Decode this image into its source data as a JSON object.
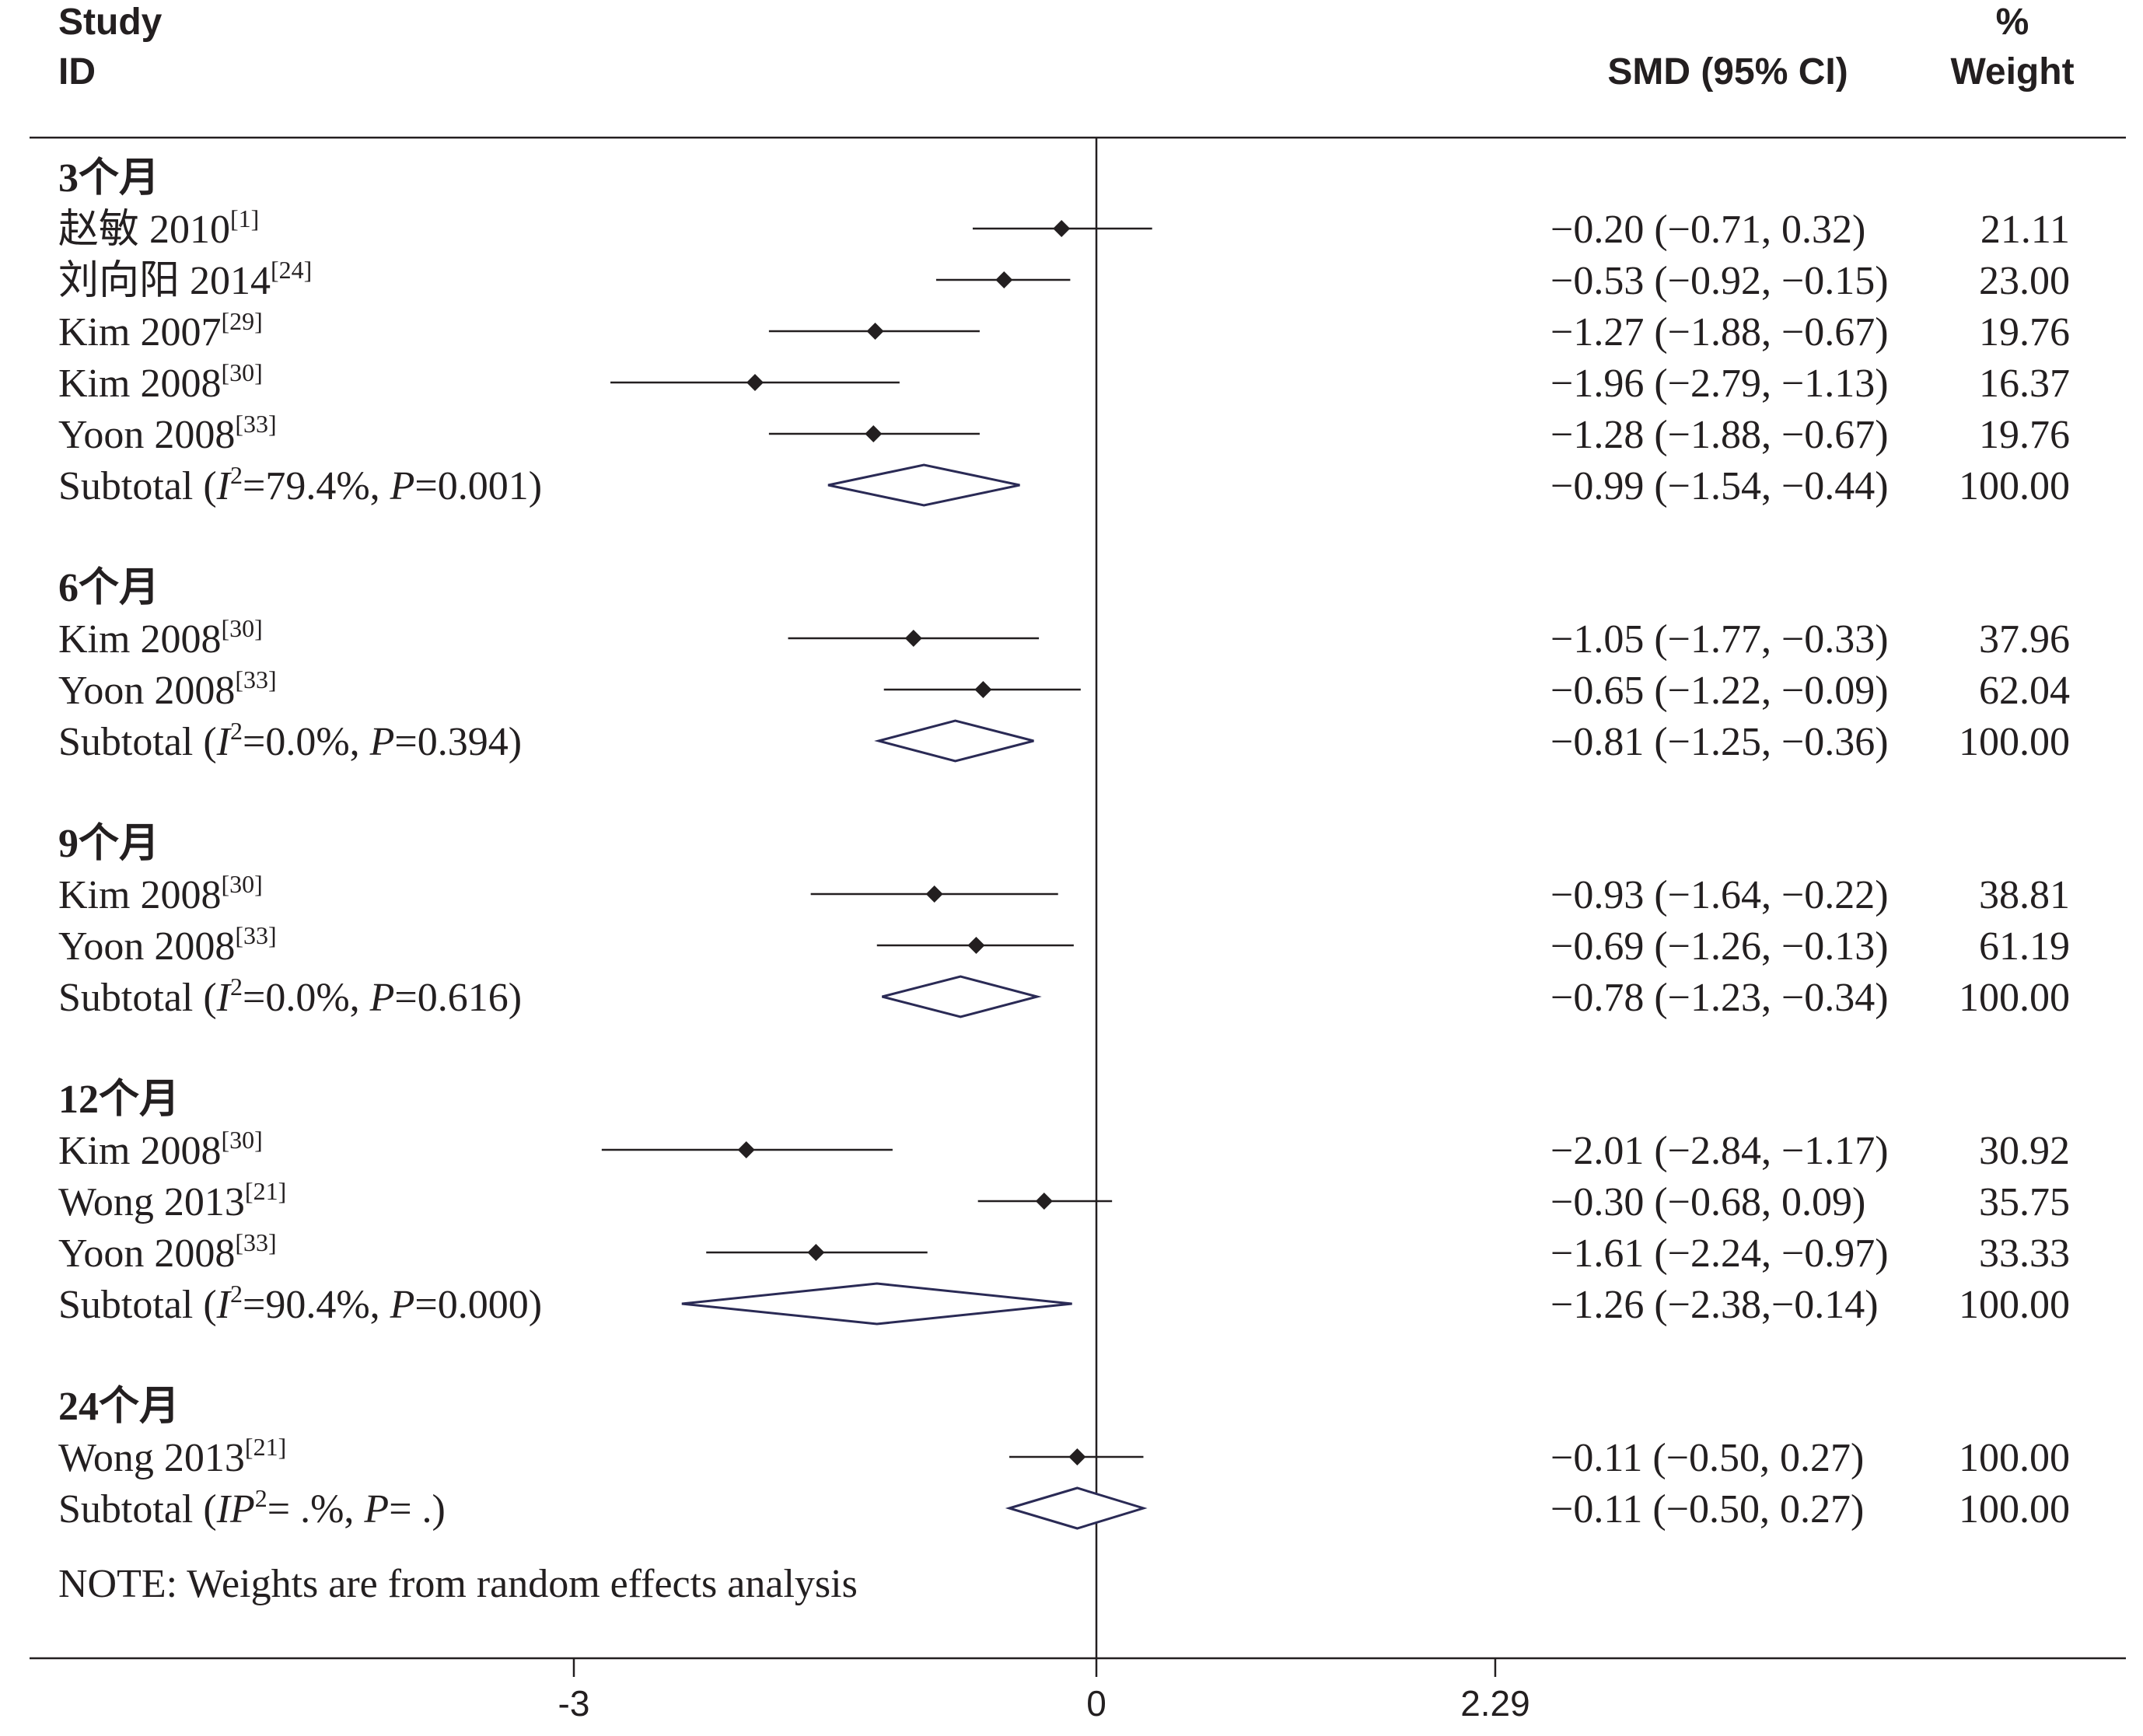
{
  "chart_data": {
    "type": "forest",
    "header": {
      "study_line1": "Study",
      "study_line2": "ID",
      "effect": "SMD (95% CI)",
      "weight_line1": "%",
      "weight_line2": "Weight"
    },
    "x_ticks": [
      {
        "value": -3,
        "label": "-3"
      },
      {
        "value": 0,
        "label": "0"
      },
      {
        "value": 2.29,
        "label": "2.29"
      }
    ],
    "groups": [
      {
        "label": "3个月",
        "studies": [
          {
            "name": "赵敏 2010",
            "ref": "[1]",
            "smd": -0.2,
            "lo": -0.71,
            "hi": 0.32,
            "ci_text": "−0.20 (−0.71, 0.32)",
            "weight": "21.11"
          },
          {
            "name": "刘向阳 2014",
            "ref": "[24]",
            "smd": -0.53,
            "lo": -0.92,
            "hi": -0.15,
            "ci_text": "−0.53 (−0.92, −0.15)",
            "weight": "23.00"
          },
          {
            "name": "Kim 2007",
            "ref": "[29]",
            "smd": -1.27,
            "lo": -1.88,
            "hi": -0.67,
            "ci_text": "−1.27 (−1.88, −0.67)",
            "weight": "19.76"
          },
          {
            "name": "Kim 2008",
            "ref": "[30]",
            "smd": -1.96,
            "lo": -2.79,
            "hi": -1.13,
            "ci_text": "−1.96 (−2.79, −1.13)",
            "weight": "16.37"
          },
          {
            "name": "Yoon 2008",
            "ref": "[33]",
            "smd": -1.28,
            "lo": -1.88,
            "hi": -0.67,
            "ci_text": "−1.28 (−1.88, −0.67)",
            "weight": "19.76"
          }
        ],
        "subtotal": {
          "prefix": "Subtotal (",
          "i": "I",
          "sup": "2",
          "mid": "=79.4%, ",
          "p": "P",
          "end": "=0.001)",
          "smd": -0.99,
          "lo": -1.54,
          "hi": -0.44,
          "ci_text": "−0.99 (−1.54, −0.44)",
          "weight": "100.00"
        }
      },
      {
        "label": "6个月",
        "studies": [
          {
            "name": "Kim 2008",
            "ref": "[30]",
            "smd": -1.05,
            "lo": -1.77,
            "hi": -0.33,
            "ci_text": "−1.05 (−1.77, −0.33)",
            "weight": "37.96"
          },
          {
            "name": "Yoon 2008",
            "ref": "[33]",
            "smd": -0.65,
            "lo": -1.22,
            "hi": -0.09,
            "ci_text": "−0.65 (−1.22, −0.09)",
            "weight": "62.04"
          }
        ],
        "subtotal": {
          "prefix": "Subtotal (",
          "i": "I",
          "sup": "2",
          "mid": "=0.0%, ",
          "p": "P",
          "end": "=0.394)",
          "smd": -0.81,
          "lo": -1.25,
          "hi": -0.36,
          "ci_text": "−0.81 (−1.25, −0.36)",
          "weight": "100.00"
        }
      },
      {
        "label": "9个月",
        "studies": [
          {
            "name": "Kim 2008",
            "ref": "[30]",
            "smd": -0.93,
            "lo": -1.64,
            "hi": -0.22,
            "ci_text": "−0.93 (−1.64, −0.22)",
            "weight": "38.81"
          },
          {
            "name": "Yoon 2008",
            "ref": "[33]",
            "smd": -0.69,
            "lo": -1.26,
            "hi": -0.13,
            "ci_text": "−0.69 (−1.26, −0.13)",
            "weight": "61.19"
          }
        ],
        "subtotal": {
          "prefix": "Subtotal (",
          "i": "I",
          "sup": "2",
          "mid": "=0.0%, ",
          "p": "P",
          "end": "=0.616)",
          "smd": -0.78,
          "lo": -1.23,
          "hi": -0.34,
          "ci_text": "−0.78 (−1.23, −0.34)",
          "weight": "100.00"
        }
      },
      {
        "label": "12个月",
        "studies": [
          {
            "name": "Kim 2008",
            "ref": "[30]",
            "smd": -2.01,
            "lo": -2.84,
            "hi": -1.17,
            "ci_text": "−2.01 (−2.84, −1.17)",
            "weight": "30.92"
          },
          {
            "name": "Wong 2013",
            "ref": "[21]",
            "smd": -0.3,
            "lo": -0.68,
            "hi": 0.09,
            "ci_text": "−0.30 (−0.68, 0.09)",
            "weight": "35.75"
          },
          {
            "name": "Yoon 2008",
            "ref": "[33]",
            "smd": -1.61,
            "lo": -2.24,
            "hi": -0.97,
            "ci_text": "−1.61 (−2.24, −0.97)",
            "weight": "33.33"
          }
        ],
        "subtotal": {
          "prefix": "Subtotal (",
          "i": "I",
          "sup": "2",
          "mid": "=90.4%, ",
          "p": "P",
          "end": "=0.000)",
          "smd": -1.26,
          "lo": -2.38,
          "hi": -0.14,
          "ci_text": "−1.26 (−2.38,−0.14)",
          "weight": "100.00"
        }
      },
      {
        "label": "24个月",
        "studies": [
          {
            "name": "Wong 2013",
            "ref": "[21]",
            "smd": -0.11,
            "lo": -0.5,
            "hi": 0.27,
            "ci_text": "−0.11 (−0.50, 0.27)",
            "weight": "100.00"
          }
        ],
        "subtotal": {
          "prefix": "Subtotal (",
          "i": "IP",
          "sup": "2",
          "mid": "= .%, ",
          "p": "P",
          "end": "= .)",
          "smd": -0.11,
          "lo": -0.5,
          "hi": 0.27,
          "ci_text": "−0.11 (−0.50, 0.27)",
          "weight": "100.00"
        }
      }
    ],
    "note": "NOTE: Weights are from random effects analysis"
  }
}
